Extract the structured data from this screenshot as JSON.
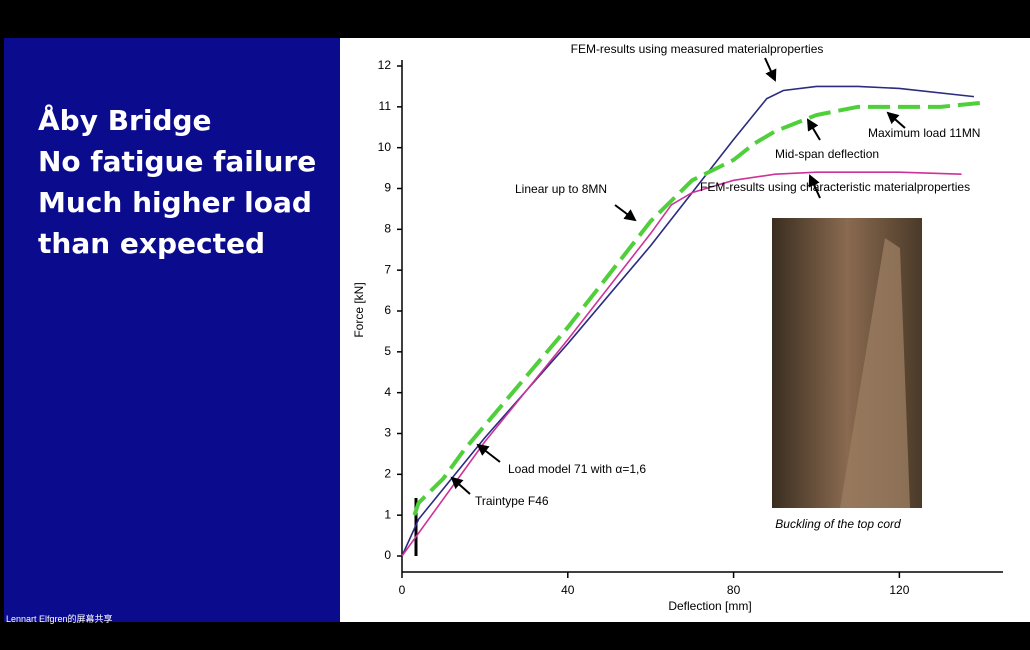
{
  "slide": {
    "lines": [
      "Åby Bridge",
      "No fatigue failure",
      "Much higher load",
      "than expected"
    ],
    "caption": "Buckling of the top cord"
  },
  "share_label": "Lennart Elfgren的屏幕共享",
  "chart_data": {
    "type": "line",
    "x_label": "Deflection [mm]",
    "y_label": "Force [kN]",
    "xlim": [
      0,
      145
    ],
    "xticks": [
      0,
      40,
      80,
      120
    ],
    "ylim": [
      0,
      12
    ],
    "yticks": [
      0,
      1,
      2,
      3,
      4,
      5,
      6,
      7,
      8,
      9,
      10,
      11,
      12
    ],
    "series": [
      {
        "name": "FEM-results using measured materialproperties",
        "color": "#2b2b80",
        "dash": false,
        "x": [
          0,
          4,
          20,
          40,
          60,
          70,
          80,
          88,
          92,
          100,
          110,
          120,
          138
        ],
        "values": [
          0,
          0.9,
          2.9,
          5.2,
          7.6,
          8.9,
          10.2,
          11.2,
          11.4,
          11.5,
          11.5,
          11.45,
          11.25
        ]
      },
      {
        "name": "Mid-span deflection",
        "color": "#4fcf3a",
        "dash": true,
        "x": [
          3,
          4,
          10,
          15,
          20,
          30,
          40,
          50,
          60,
          65,
          70,
          80,
          85,
          90,
          100,
          110,
          120,
          130,
          140
        ],
        "values": [
          1.0,
          1.3,
          1.9,
          2.6,
          3.2,
          4.4,
          5.6,
          6.9,
          8.2,
          8.7,
          9.2,
          9.7,
          10.1,
          10.4,
          10.8,
          11.0,
          11.0,
          11.0,
          11.1
        ]
      },
      {
        "name": "FEM-results using characteristic materialproperties",
        "color": "#cc3399",
        "dash": false,
        "x": [
          0,
          20,
          40,
          60,
          65,
          70,
          80,
          90,
          100,
          120,
          135
        ],
        "values": [
          0,
          2.8,
          5.3,
          7.9,
          8.6,
          8.9,
          9.2,
          9.35,
          9.4,
          9.4,
          9.35
        ]
      }
    ],
    "annotations": [
      "Maximum load 11MN",
      "Linear up to 8MN",
      "Load model 71 with α=1,6",
      "Traintype F46"
    ]
  }
}
